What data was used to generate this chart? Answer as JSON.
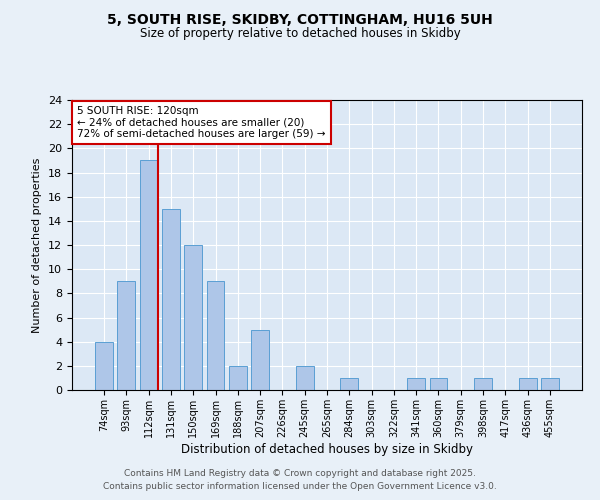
{
  "title1": "5, SOUTH RISE, SKIDBY, COTTINGHAM, HU16 5UH",
  "title2": "Size of property relative to detached houses in Skidby",
  "xlabel": "Distribution of detached houses by size in Skidby",
  "ylabel": "Number of detached properties",
  "categories": [
    "74sqm",
    "93sqm",
    "112sqm",
    "131sqm",
    "150sqm",
    "169sqm",
    "188sqm",
    "207sqm",
    "226sqm",
    "245sqm",
    "265sqm",
    "284sqm",
    "303sqm",
    "322sqm",
    "341sqm",
    "360sqm",
    "379sqm",
    "398sqm",
    "417sqm",
    "436sqm",
    "455sqm"
  ],
  "values": [
    4,
    9,
    19,
    15,
    12,
    9,
    2,
    5,
    0,
    2,
    0,
    1,
    0,
    0,
    1,
    1,
    0,
    1,
    0,
    1,
    1
  ],
  "bar_color": "#aec6e8",
  "bar_edge_color": "#5a9fd4",
  "vline_x_index": 2,
  "vline_color": "#cc0000",
  "annotation_text": "5 SOUTH RISE: 120sqm\n← 24% of detached houses are smaller (20)\n72% of semi-detached houses are larger (59) →",
  "annotation_box_color": "#ffffff",
  "annotation_box_edge_color": "#cc0000",
  "ylim": [
    0,
    24
  ],
  "yticks": [
    0,
    2,
    4,
    6,
    8,
    10,
    12,
    14,
    16,
    18,
    20,
    22,
    24
  ],
  "footer1": "Contains HM Land Registry data © Crown copyright and database right 2025.",
  "footer2": "Contains public sector information licensed under the Open Government Licence v3.0.",
  "background_color": "#e8f0f8",
  "plot_bg_color": "#dce8f5"
}
